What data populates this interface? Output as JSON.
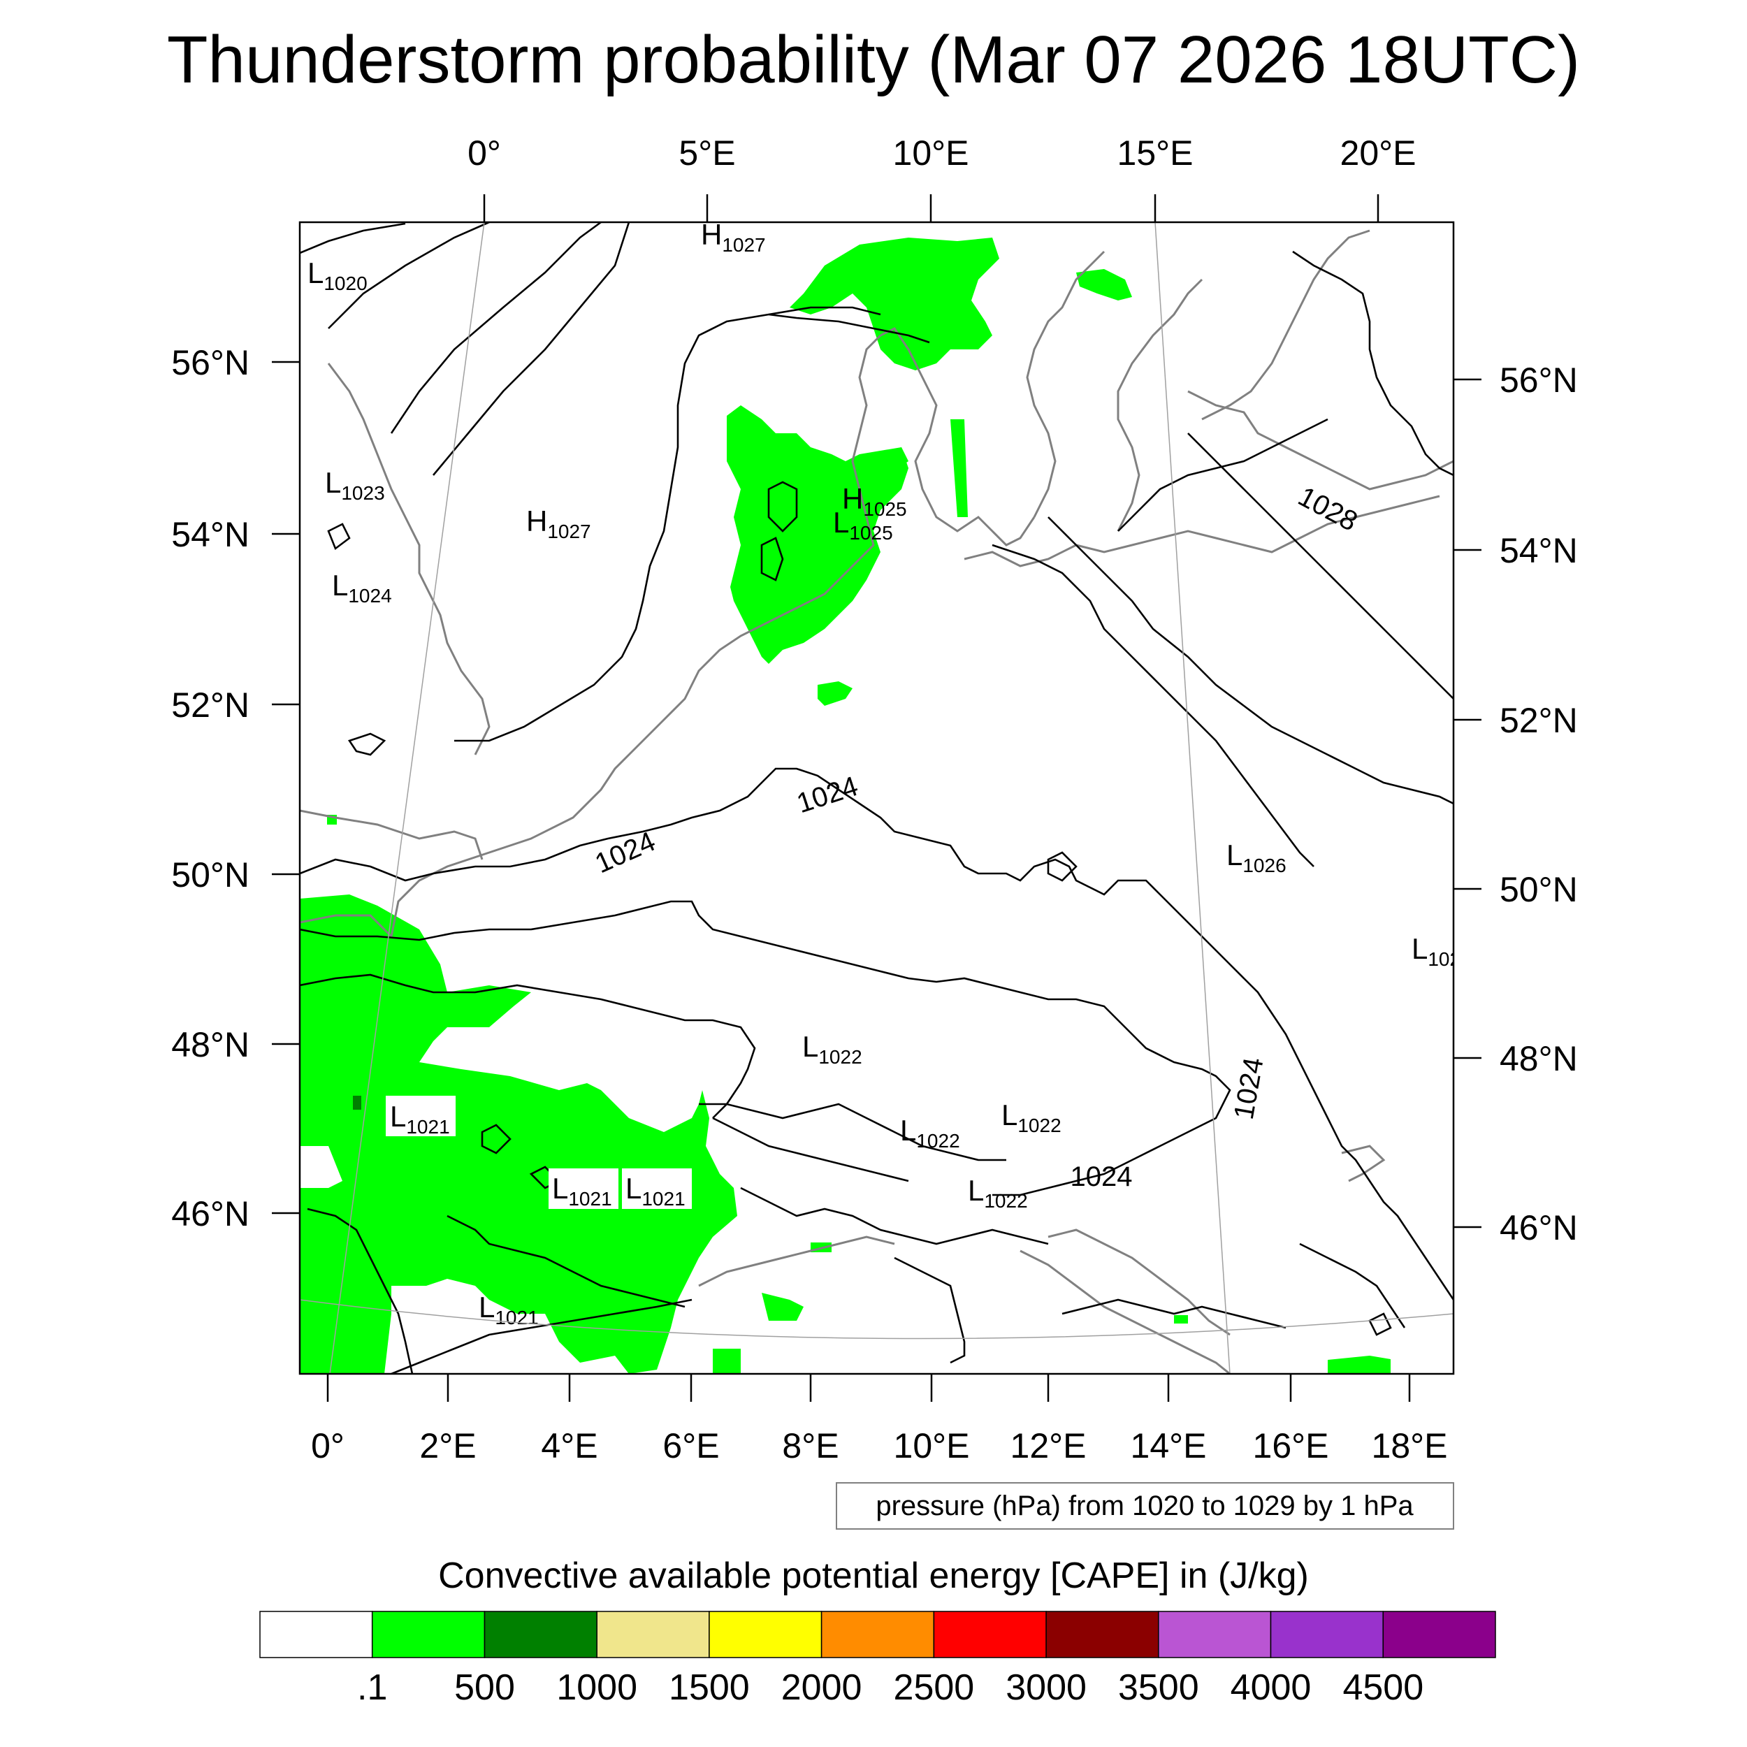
{
  "title": "Thunderstorm probability (Mar 07 2026 18UTC)",
  "top_lon_labels": [
    "0°",
    "5°E",
    "10°E",
    "15°E",
    "20°E"
  ],
  "bottom_lon_labels": [
    "0°",
    "2°E",
    "4°E",
    "6°E",
    "8°E",
    "10°E",
    "12°E",
    "14°E",
    "16°E",
    "18°E"
  ],
  "left_lat_labels": [
    "56°N",
    "54°N",
    "52°N",
    "50°N",
    "48°N",
    "46°N"
  ],
  "right_lat_labels": [
    "56°N",
    "54°N",
    "52°N",
    "50°N",
    "48°N",
    "46°N"
  ],
  "pressure_centers": [
    {
      "type": "L",
      "value": "1020"
    },
    {
      "type": "H",
      "value": "1027"
    },
    {
      "type": "L",
      "value": "1023"
    },
    {
      "type": "H",
      "value": "1027"
    },
    {
      "type": "L",
      "value": "1024"
    },
    {
      "type": "H",
      "value": "1025"
    },
    {
      "type": "L",
      "value": "1025"
    },
    {
      "type": "L",
      "value": "1026"
    },
    {
      "type": "L",
      "value": "102"
    },
    {
      "type": "L",
      "value": "1022"
    },
    {
      "type": "L",
      "value": "1021"
    },
    {
      "type": "L",
      "value": "1022"
    },
    {
      "type": "L",
      "value": "1022"
    },
    {
      "type": "L",
      "value": "1021"
    },
    {
      "type": "L",
      "value": "1021"
    },
    {
      "type": "L",
      "value": "1022"
    },
    {
      "type": "L",
      "value": "1021"
    }
  ],
  "isobar_labels": [
    "1024",
    "1024",
    "1028",
    "1024",
    "1024"
  ],
  "contour_note": "pressure (hPa) from 1020 to 1029 by 1 hPa",
  "colorbar": {
    "title": "Convective available potential energy [CAPE] in (J/kg)",
    "labels": [
      ".1",
      "500",
      "1000",
      "1500",
      "2000",
      "2500",
      "3000",
      "3500",
      "4000",
      "4500"
    ],
    "colors": [
      "#ffffff",
      "#00ff00",
      "#008000",
      "#f0e68c",
      "#ffff00",
      "#ff8c00",
      "#ff0000",
      "#8b0000",
      "#ba55d3",
      "#9932cc",
      "#8b008b"
    ]
  },
  "colors": {
    "cape_green": "#00ff00",
    "cape_dark_green": "#008000",
    "coastline": "#808080",
    "isobar": "#000000"
  }
}
